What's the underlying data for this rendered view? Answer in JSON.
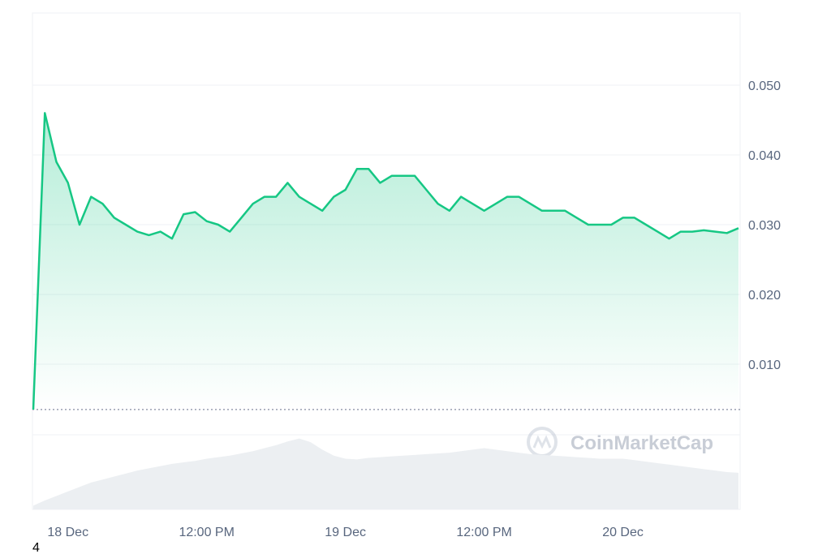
{
  "chart_data": {
    "type": "line",
    "categories": [
      null,
      null,
      null,
      "18 Dec",
      null,
      null,
      null,
      null,
      null,
      null,
      null,
      null,
      null,
      null,
      null,
      "12:00 PM",
      null,
      null,
      null,
      null,
      null,
      null,
      null,
      null,
      null,
      null,
      null,
      "19 Dec",
      null,
      null,
      null,
      null,
      null,
      null,
      null,
      null,
      null,
      null,
      null,
      "12:00 PM",
      null,
      null,
      null,
      null,
      null,
      null,
      null,
      null,
      null,
      null,
      null,
      "20 Dec",
      null,
      null,
      null,
      null,
      null,
      null,
      null,
      null,
      null,
      null
    ],
    "series": [
      {
        "color": "#16c784",
        "values": [
          0.0035,
          0.046,
          0.039,
          0.036,
          0.03,
          0.034,
          0.033,
          0.031,
          0.03,
          0.029,
          0.0285,
          0.029,
          0.028,
          0.0315,
          0.0318,
          0.0305,
          0.03,
          0.029,
          0.031,
          0.033,
          0.034,
          0.034,
          0.036,
          0.034,
          0.033,
          0.032,
          0.034,
          0.035,
          0.038,
          0.038,
          0.036,
          0.037,
          0.037,
          0.037,
          0.035,
          0.033,
          0.032,
          0.034,
          0.033,
          0.032,
          0.033,
          0.034,
          0.034,
          0.033,
          0.032,
          0.032,
          0.032,
          0.031,
          0.03,
          0.03,
          0.03,
          0.031,
          0.031,
          0.03,
          0.029,
          0.028,
          0.029,
          0.029,
          0.0292,
          0.029,
          0.0288,
          0.0295
        ]
      }
    ],
    "volume": {
      "color": "#eceff2",
      "ylim": [
        0,
        100
      ],
      "values": [
        5,
        12,
        18,
        24,
        30,
        36,
        40,
        44,
        48,
        52,
        55,
        58,
        61,
        63,
        65,
        68,
        70,
        72,
        75,
        78,
        82,
        86,
        91,
        95,
        90,
        80,
        72,
        68,
        67,
        69,
        70,
        71,
        72,
        73,
        74,
        75,
        76,
        78,
        80,
        82,
        80,
        78,
        76,
        74,
        73,
        72,
        71,
        70,
        69,
        68,
        68,
        68,
        66,
        64,
        62,
        60,
        58,
        56,
        54,
        52,
        50,
        49
      ]
    },
    "reference_line": 0.0035,
    "ylim": [
      0,
      0.06
    ],
    "yticks": [
      {
        "value": 0.01,
        "label": "0.010"
      },
      {
        "value": 0.02,
        "label": "0.020"
      },
      {
        "value": 0.03,
        "label": "0.030"
      },
      {
        "value": 0.04,
        "label": "0.040"
      },
      {
        "value": 0.05,
        "label": "0.050"
      }
    ],
    "grid": true,
    "watermark": "CoinMarketCap",
    "footnote": "4"
  }
}
